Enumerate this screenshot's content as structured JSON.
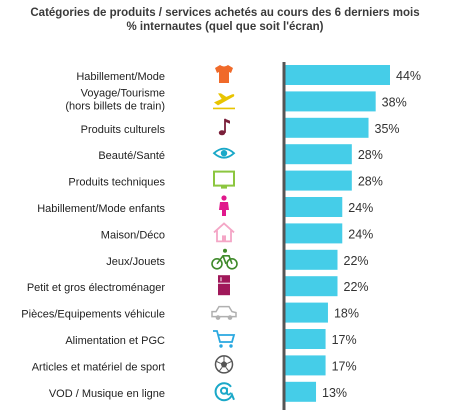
{
  "chart_data": {
    "type": "bar",
    "orientation": "horizontal",
    "title": "Catégories de produits / services achetés au cours des 6 derniers mois",
    "subtitle": "% internautes (quel que soit l'écran)",
    "categories": [
      "Habillement/Mode",
      "Voyage/Tourisme\n(hors billets de train)",
      "Produits culturels",
      "Beauté/Santé",
      "Produits techniques",
      "Habillement/Mode enfants",
      "Maison/Déco",
      "Jeux/Jouets",
      "Petit et gros électroménager",
      "Pièces/Equipements véhicule",
      "Alimentation et PGC",
      "Articles et matériel de sport",
      "VOD / Musique en ligne"
    ],
    "values": [
      44,
      38,
      35,
      28,
      28,
      24,
      24,
      22,
      22,
      18,
      17,
      17,
      13
    ],
    "value_labels": [
      "44%",
      "38%",
      "35%",
      "28%",
      "28%",
      "24%",
      "24%",
      "22%",
      "22%",
      "18%",
      "17%",
      "17%",
      "13%"
    ],
    "icons": [
      {
        "name": "tshirt-icon",
        "color": "#f06a2a"
      },
      {
        "name": "airplane-icon",
        "color": "#e8c400"
      },
      {
        "name": "music-note-icon",
        "color": "#7a1f3a"
      },
      {
        "name": "eye-icon",
        "color": "#1aa8c8"
      },
      {
        "name": "monitor-icon",
        "color": "#8cc63f"
      },
      {
        "name": "child-icon",
        "color": "#e0188c"
      },
      {
        "name": "house-icon",
        "color": "#f4a6c6"
      },
      {
        "name": "bicycle-icon",
        "color": "#3f8a2a"
      },
      {
        "name": "appliance-icon",
        "color": "#a0185a"
      },
      {
        "name": "car-icon",
        "color": "#b0b0b0"
      },
      {
        "name": "shopping-cart-icon",
        "color": "#29a8e0"
      },
      {
        "name": "soccer-ball-icon",
        "color": "#555555"
      },
      {
        "name": "at-sign-icon",
        "color": "#1aa8c8"
      }
    ],
    "bar_color": "#45cde8",
    "axis_color": "#555555",
    "xlim": [
      0,
      50
    ]
  }
}
